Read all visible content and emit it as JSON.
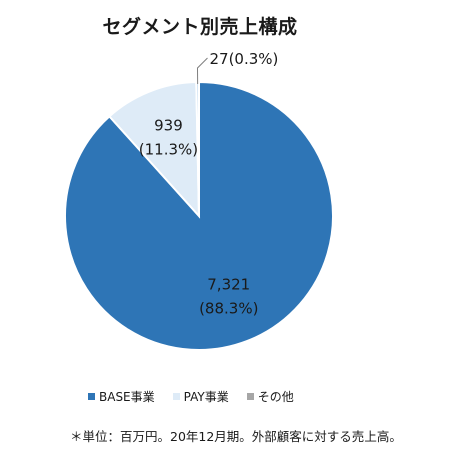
{
  "chart_data": {
    "type": "pie",
    "title": "セグメント別売上構成",
    "slices": [
      {
        "name": "BASE事業",
        "value": 7321,
        "value_label": "7,321",
        "percent_label": "(88.3%)",
        "color": "#2E75B6"
      },
      {
        "name": "PAY事業",
        "value": 939,
        "value_label": "939",
        "percent_label": "(11.3%)",
        "color": "#DEEBF7"
      },
      {
        "name": "その他",
        "value": 27,
        "value_label": "27(0.3%)",
        "percent_label": "",
        "color": "#BDD7EE"
      }
    ],
    "start_angle_deg": 0,
    "direction": "clockwise",
    "legend_position": "bottom"
  },
  "footnote": "＊単位：百万円。20年12月期。外部顧客に対する売上高。"
}
